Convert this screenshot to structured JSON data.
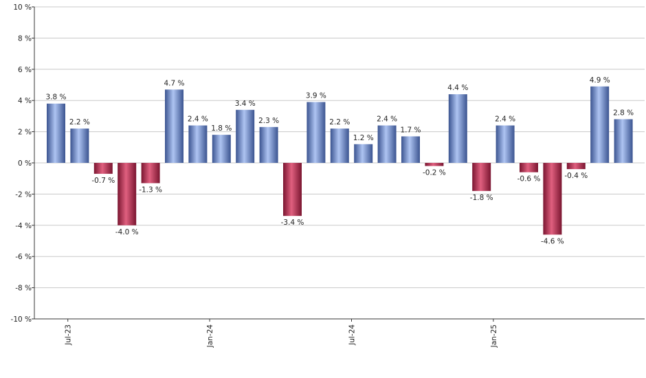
{
  "chart_data": {
    "type": "bar",
    "title": "",
    "xlabel": "",
    "ylabel": "",
    "ylim": [
      -10,
      10
    ],
    "y_ticks": [
      10,
      8,
      6,
      4,
      2,
      0,
      -2,
      -4,
      -6,
      -8,
      -10
    ],
    "y_tick_suffix": " %",
    "grid": true,
    "x_tick_labels": [
      {
        "label": "Jul-23",
        "after_bar": 1
      },
      {
        "label": "Jan-24",
        "after_bar": 7
      },
      {
        "label": "Jul-24",
        "after_bar": 13
      },
      {
        "label": "Jan-25",
        "after_bar": 19
      }
    ],
    "values": [
      3.8,
      2.2,
      -0.7,
      -4.0,
      -1.3,
      4.7,
      2.4,
      1.8,
      3.4,
      2.3,
      -3.4,
      3.9,
      2.2,
      1.2,
      2.4,
      1.7,
      -0.2,
      4.4,
      -1.8,
      2.4,
      -0.6,
      -4.6,
      -0.4,
      4.9,
      2.8
    ],
    "value_labels": [
      "3.8 %",
      "2.2 %",
      "-0.7 %",
      "-4.0 %",
      "-1.3 %",
      "4.7 %",
      "2.4 %",
      "1.8 %",
      "3.4 %",
      "2.3 %",
      "-3.4 %",
      "3.9 %",
      "2.2 %",
      "1.2 %",
      "2.4 %",
      "1.7 %",
      "-0.2 %",
      "4.4 %",
      "-1.8 %",
      "2.4 %",
      "-0.6 %",
      "-4.6 %",
      "-0.4 %",
      "4.9 %",
      "2.8 %"
    ],
    "colors": {
      "positive": "#6f8fd8",
      "positive_light": "#aec4f2",
      "positive_dark": "#3b5490",
      "negative": "#b8264c",
      "negative_light": "#e0607f",
      "negative_dark": "#7a1530"
    }
  }
}
